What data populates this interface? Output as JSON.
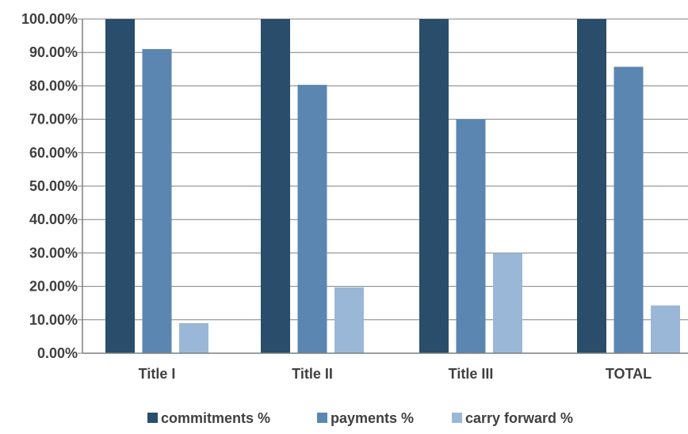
{
  "chart_data": {
    "type": "bar",
    "categories": [
      "Title I",
      "Title II",
      "Title III",
      "TOTAL"
    ],
    "series": [
      {
        "name": "commitments %",
        "values": [
          100,
          100,
          100,
          100
        ],
        "color": "#294D6B"
      },
      {
        "name": "payments %",
        "values": [
          91,
          80.3,
          70,
          85.7
        ],
        "color": "#5B86B1"
      },
      {
        "name": "carry forward %",
        "values": [
          9,
          19.7,
          30,
          14.3
        ],
        "color": "#9BB7D7"
      }
    ],
    "ylim": [
      0,
      100
    ],
    "yticks": [
      "0.00%",
      "10.00%",
      "20.00%",
      "30.00%",
      "40.00%",
      "50.00%",
      "60.00%",
      "70.00%",
      "80.00%",
      "90.00%",
      "100.00%"
    ],
    "grid": true,
    "legend": "bottom",
    "axis_color": "#7f7f7f",
    "grid_color": "#808080"
  }
}
